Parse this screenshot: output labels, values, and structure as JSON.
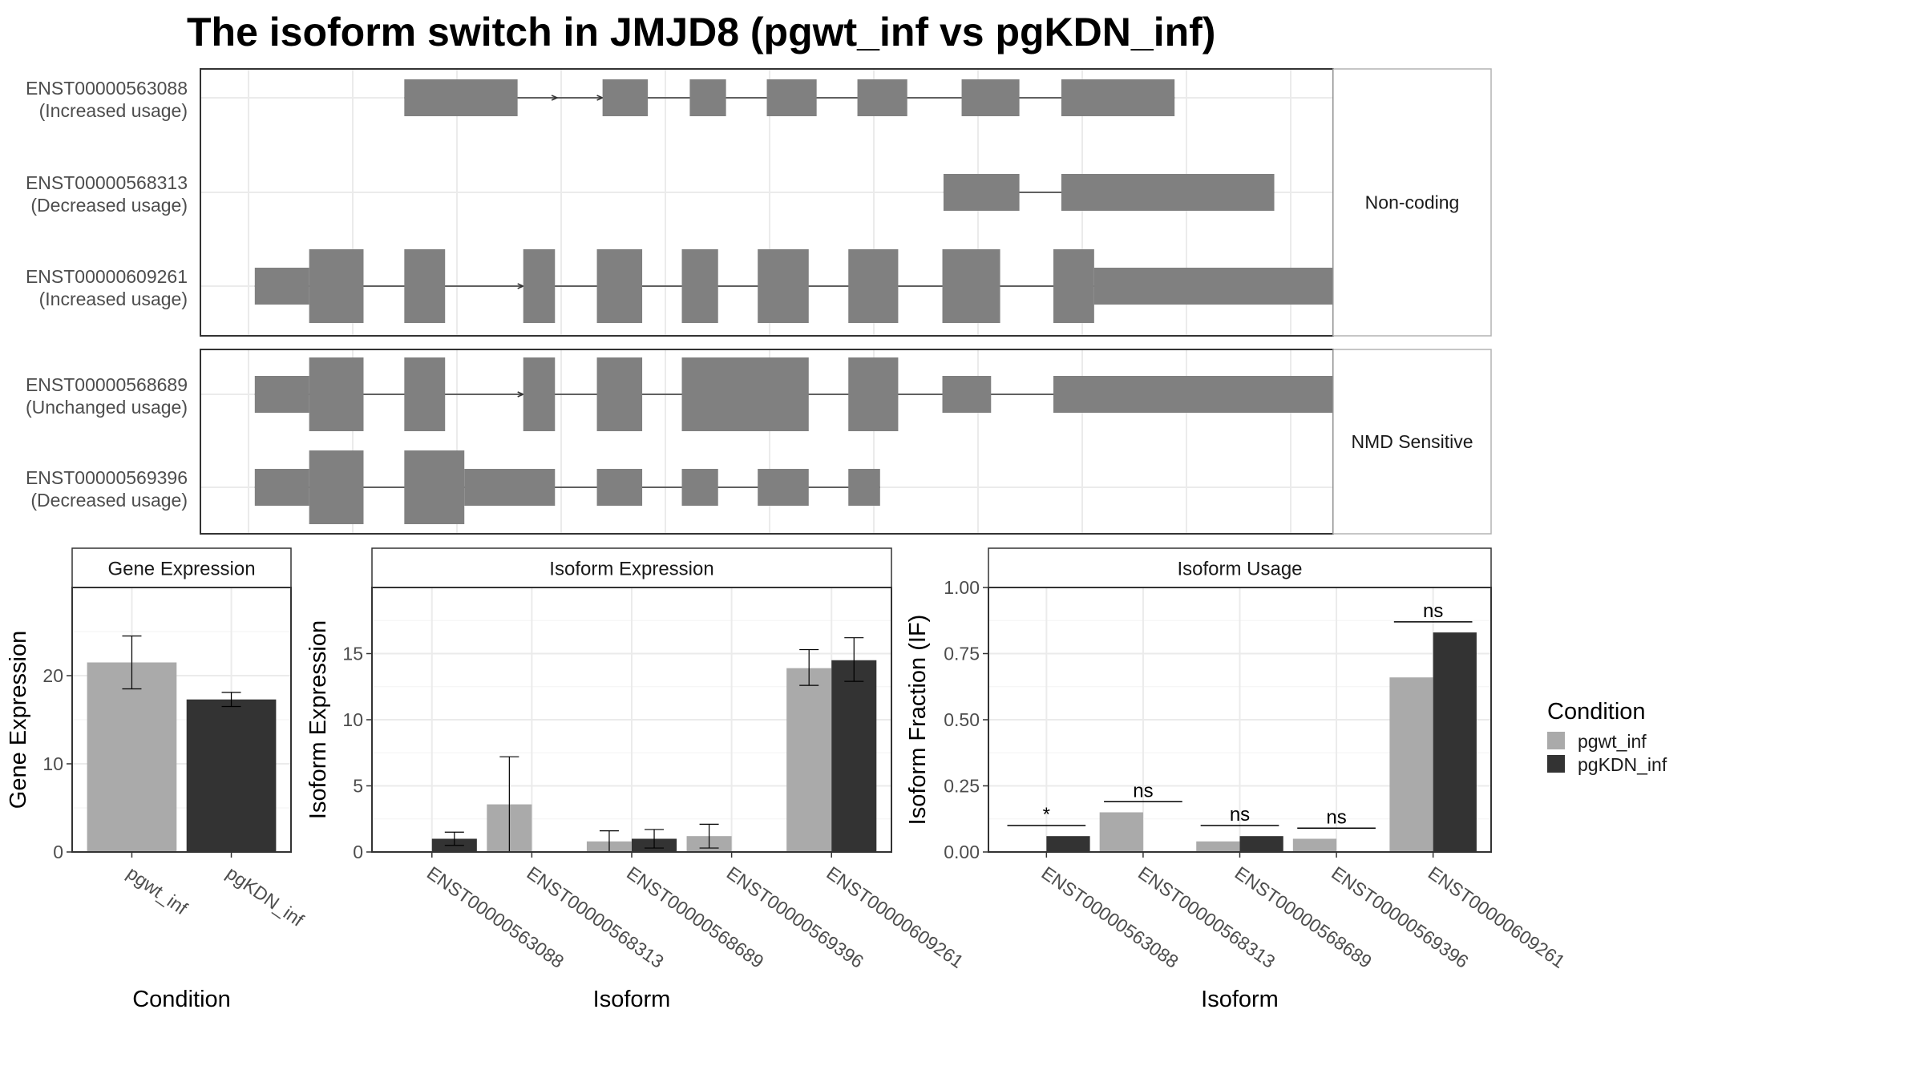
{
  "title": "The isoform switch in JMJD8 (pgwt_inf vs pgKDN_inf)",
  "colors": {
    "pgwt_inf": "#aaaaaa",
    "pgKDN_inf": "#333333",
    "exon": "#808080",
    "grid": "#ebebeb",
    "panel_border": "#333333",
    "strip_border": "#666666"
  },
  "legend": {
    "title": "Condition",
    "entries": [
      {
        "name": "pgwt_inf",
        "color": "#aaaaaa"
      },
      {
        "name": "pgKDN_inf",
        "color": "#333333"
      }
    ]
  },
  "chart_data": [
    {
      "type": "gene-structure",
      "panel": "transcripts",
      "groups": [
        {
          "label": "Non-coding",
          "transcripts": [
            {
              "id": "ENST00000563088",
              "usage": "(Increased usage)",
              "direction_arrows": [
                [
                  0.315,
                  0.355
                ]
              ],
              "exons": [
                [
                  0.18,
                  0.28,
                  "s"
                ],
                [
                  0.355,
                  0.395,
                  "s"
                ],
                [
                  0.432,
                  0.464,
                  "s"
                ],
                [
                  0.5,
                  0.544,
                  "s"
                ],
                [
                  0.58,
                  0.624,
                  "s"
                ],
                [
                  0.672,
                  0.723,
                  "s"
                ],
                [
                  0.76,
                  0.86,
                  "s"
                ]
              ]
            },
            {
              "id": "ENST00000568313",
              "usage": "(Decreased usage)",
              "direction_arrows": [],
              "exons": [
                [
                  0.656,
                  0.723,
                  "s"
                ],
                [
                  0.76,
                  0.948,
                  "s"
                ]
              ]
            }
          ]
        },
        {
          "label": "Non-coding",
          "transcripts": [
            {
              "id": "ENST00000609261",
              "usage": "(Increased usage)",
              "direction_arrows": [
                [
                  0.2,
                  0.285
                ]
              ],
              "exons": [
                [
                  0.048,
                  0.096,
                  "s"
                ],
                [
                  0.096,
                  0.144,
                  "t"
                ],
                [
                  0.18,
                  0.216,
                  "t"
                ],
                [
                  0.285,
                  0.313,
                  "t"
                ],
                [
                  0.35,
                  0.39,
                  "t"
                ],
                [
                  0.425,
                  0.457,
                  "t"
                ],
                [
                  0.492,
                  0.537,
                  "t"
                ],
                [
                  0.572,
                  0.616,
                  "t"
                ],
                [
                  0.655,
                  0.706,
                  "t"
                ],
                [
                  0.753,
                  0.789,
                  "t"
                ],
                [
                  0.789,
                  1.04,
                  "s"
                ]
              ]
            }
          ]
        },
        {
          "label": "NMD Sensitive",
          "transcripts": [
            {
              "id": "ENST00000568689",
              "usage": "(Unchanged usage)",
              "direction_arrows": [
                [
                  0.2,
                  0.285
                ]
              ],
              "exons": [
                [
                  0.048,
                  0.096,
                  "s"
                ],
                [
                  0.096,
                  0.144,
                  "t"
                ],
                [
                  0.18,
                  0.216,
                  "t"
                ],
                [
                  0.285,
                  0.313,
                  "t"
                ],
                [
                  0.35,
                  0.39,
                  "t"
                ],
                [
                  0.425,
                  0.537,
                  "t"
                ],
                [
                  0.572,
                  0.616,
                  "t"
                ],
                [
                  0.655,
                  0.698,
                  "s"
                ],
                [
                  0.753,
                  1.02,
                  "s"
                ]
              ]
            },
            {
              "id": "ENST00000569396",
              "usage": "(Decreased usage)",
              "direction_arrows": [],
              "exons": [
                [
                  0.048,
                  0.096,
                  "s"
                ],
                [
                  0.096,
                  0.144,
                  "t"
                ],
                [
                  0.18,
                  0.233,
                  "t"
                ],
                [
                  0.233,
                  0.313,
                  "s"
                ],
                [
                  0.35,
                  0.39,
                  "s"
                ],
                [
                  0.425,
                  0.457,
                  "s"
                ],
                [
                  0.492,
                  0.537,
                  "s"
                ],
                [
                  0.572,
                  0.6,
                  "s"
                ]
              ]
            }
          ]
        }
      ]
    },
    {
      "type": "bar",
      "strip": "Gene Expression",
      "xlabel": "Condition",
      "ylabel": "Gene Expression",
      "categories": [
        "pgwt_inf",
        "pgKDN_inf"
      ],
      "ylim": [
        0,
        30
      ],
      "yticks": [
        0,
        10,
        20
      ],
      "series": [
        {
          "name": "pgwt_inf",
          "values": [
            21.5,
            null
          ],
          "err_low": [
            18.5,
            null
          ],
          "err_high": [
            24.5,
            null
          ]
        },
        {
          "name": "pgKDN_inf",
          "values": [
            null,
            17.3
          ],
          "err_low": [
            null,
            16.5
          ],
          "err_high": [
            null,
            18.1
          ]
        }
      ]
    },
    {
      "type": "bar",
      "strip": "Isoform Expression",
      "xlabel": "Isoform",
      "ylabel": "Isoform Expression",
      "categories": [
        "ENST00000563088",
        "ENST00000568313",
        "ENST00000568689",
        "ENST00000569396",
        "ENST00000609261"
      ],
      "ylim": [
        0,
        20
      ],
      "yticks": [
        0,
        5,
        10,
        15
      ],
      "series": [
        {
          "name": "pgwt_inf",
          "values": [
            0.0,
            3.6,
            0.8,
            1.2,
            13.9
          ],
          "err_low": [
            0.0,
            0.0,
            0.0,
            0.3,
            12.6
          ],
          "err_high": [
            0.0,
            7.2,
            1.6,
            2.1,
            15.3
          ]
        },
        {
          "name": "pgKDN_inf",
          "values": [
            1.0,
            0.0,
            1.0,
            0.0,
            14.5
          ],
          "err_low": [
            0.5,
            0.0,
            0.3,
            0.0,
            12.9
          ],
          "err_high": [
            1.5,
            0.0,
            1.7,
            0.0,
            16.2
          ]
        }
      ]
    },
    {
      "type": "bar",
      "strip": "Isoform Usage",
      "xlabel": "Isoform",
      "ylabel": "Isoform Fraction (IF)",
      "categories": [
        "ENST00000563088",
        "ENST00000568313",
        "ENST00000568689",
        "ENST00000569396",
        "ENST00000609261"
      ],
      "ylim": [
        0,
        1.0
      ],
      "yticks": [
        "0.00",
        "0.25",
        "0.50",
        "0.75",
        "1.00"
      ],
      "series": [
        {
          "name": "pgwt_inf",
          "values": [
            0.0,
            0.15,
            0.04,
            0.05,
            0.66
          ]
        },
        {
          "name": "pgKDN_inf",
          "values": [
            0.06,
            0.0,
            0.06,
            0.0,
            0.83
          ]
        }
      ],
      "significance": [
        {
          "label": "*",
          "y": 0.1
        },
        {
          "label": "ns",
          "y": 0.19
        },
        {
          "label": "ns",
          "y": 0.1
        },
        {
          "label": "ns",
          "y": 0.09
        },
        {
          "label": "ns",
          "y": 0.87
        }
      ]
    }
  ]
}
